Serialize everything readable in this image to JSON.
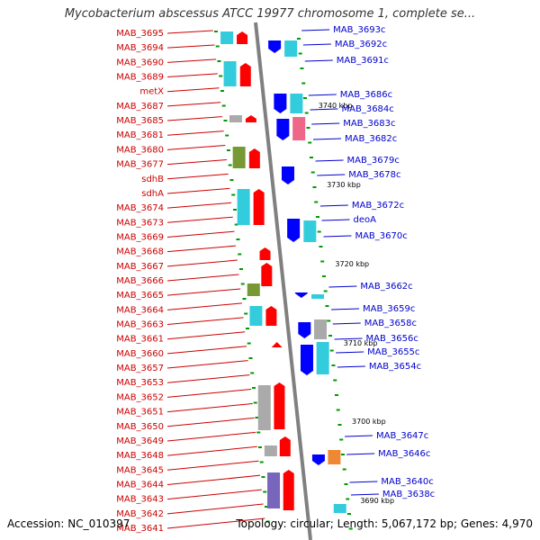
{
  "title": "Mycobacterium abscessus ATCC 19977 chromosome 1, complete se...",
  "footer": {
    "accession": "Accession: NC_010397",
    "summary": "Topology: circular; Length: 5,067,172 bp; Genes: 4,970"
  },
  "colors": {
    "left_labels": "#cc0000",
    "right_labels": "#0000cc",
    "forward_gene": "#ff0000",
    "reverse_gene": "#0000ff",
    "backbone": "#808080",
    "tick": "#009900"
  },
  "kbp_marks": [
    "3740 kbp",
    "3730 kbp",
    "3720 kbp",
    "3710 kbp",
    "3700 kbp",
    "3690 kbp"
  ],
  "left_genes": [
    "MAB_3695",
    "MAB_3694",
    "MAB_3690",
    "MAB_3689",
    "metX",
    "MAB_3687",
    "MAB_3685",
    "MAB_3681",
    "MAB_3680",
    "MAB_3677",
    "sdhB",
    "sdhA",
    "MAB_3674",
    "MAB_3673",
    "MAB_3669",
    "MAB_3668",
    "MAB_3667",
    "MAB_3666",
    "MAB_3665",
    "MAB_3664",
    "MAB_3663",
    "MAB_3661",
    "MAB_3660",
    "MAB_3657",
    "MAB_3653",
    "MAB_3652",
    "MAB_3651",
    "MAB_3650",
    "MAB_3649",
    "MAB_3648",
    "MAB_3645",
    "MAB_3644",
    "MAB_3643",
    "MAB_3642",
    "MAB_3641"
  ],
  "right_genes": [
    "MAB_3693c",
    "MAB_3692c",
    "MAB_3691c",
    "MAB_3686c",
    "MAB_3684c",
    "MAB_3683c",
    "MAB_3682c",
    "MAB_3679c",
    "MAB_3678c",
    "MAB_3672c",
    "deoA",
    "MAB_3670c",
    "MAB_3662c",
    "MAB_3659c",
    "MAB_3658c",
    "MAB_3656c",
    "MAB_3655c",
    "MAB_3654c",
    "MAB_3647c",
    "MAB_3646c",
    "MAB_3640c",
    "MAB_3638c"
  ]
}
